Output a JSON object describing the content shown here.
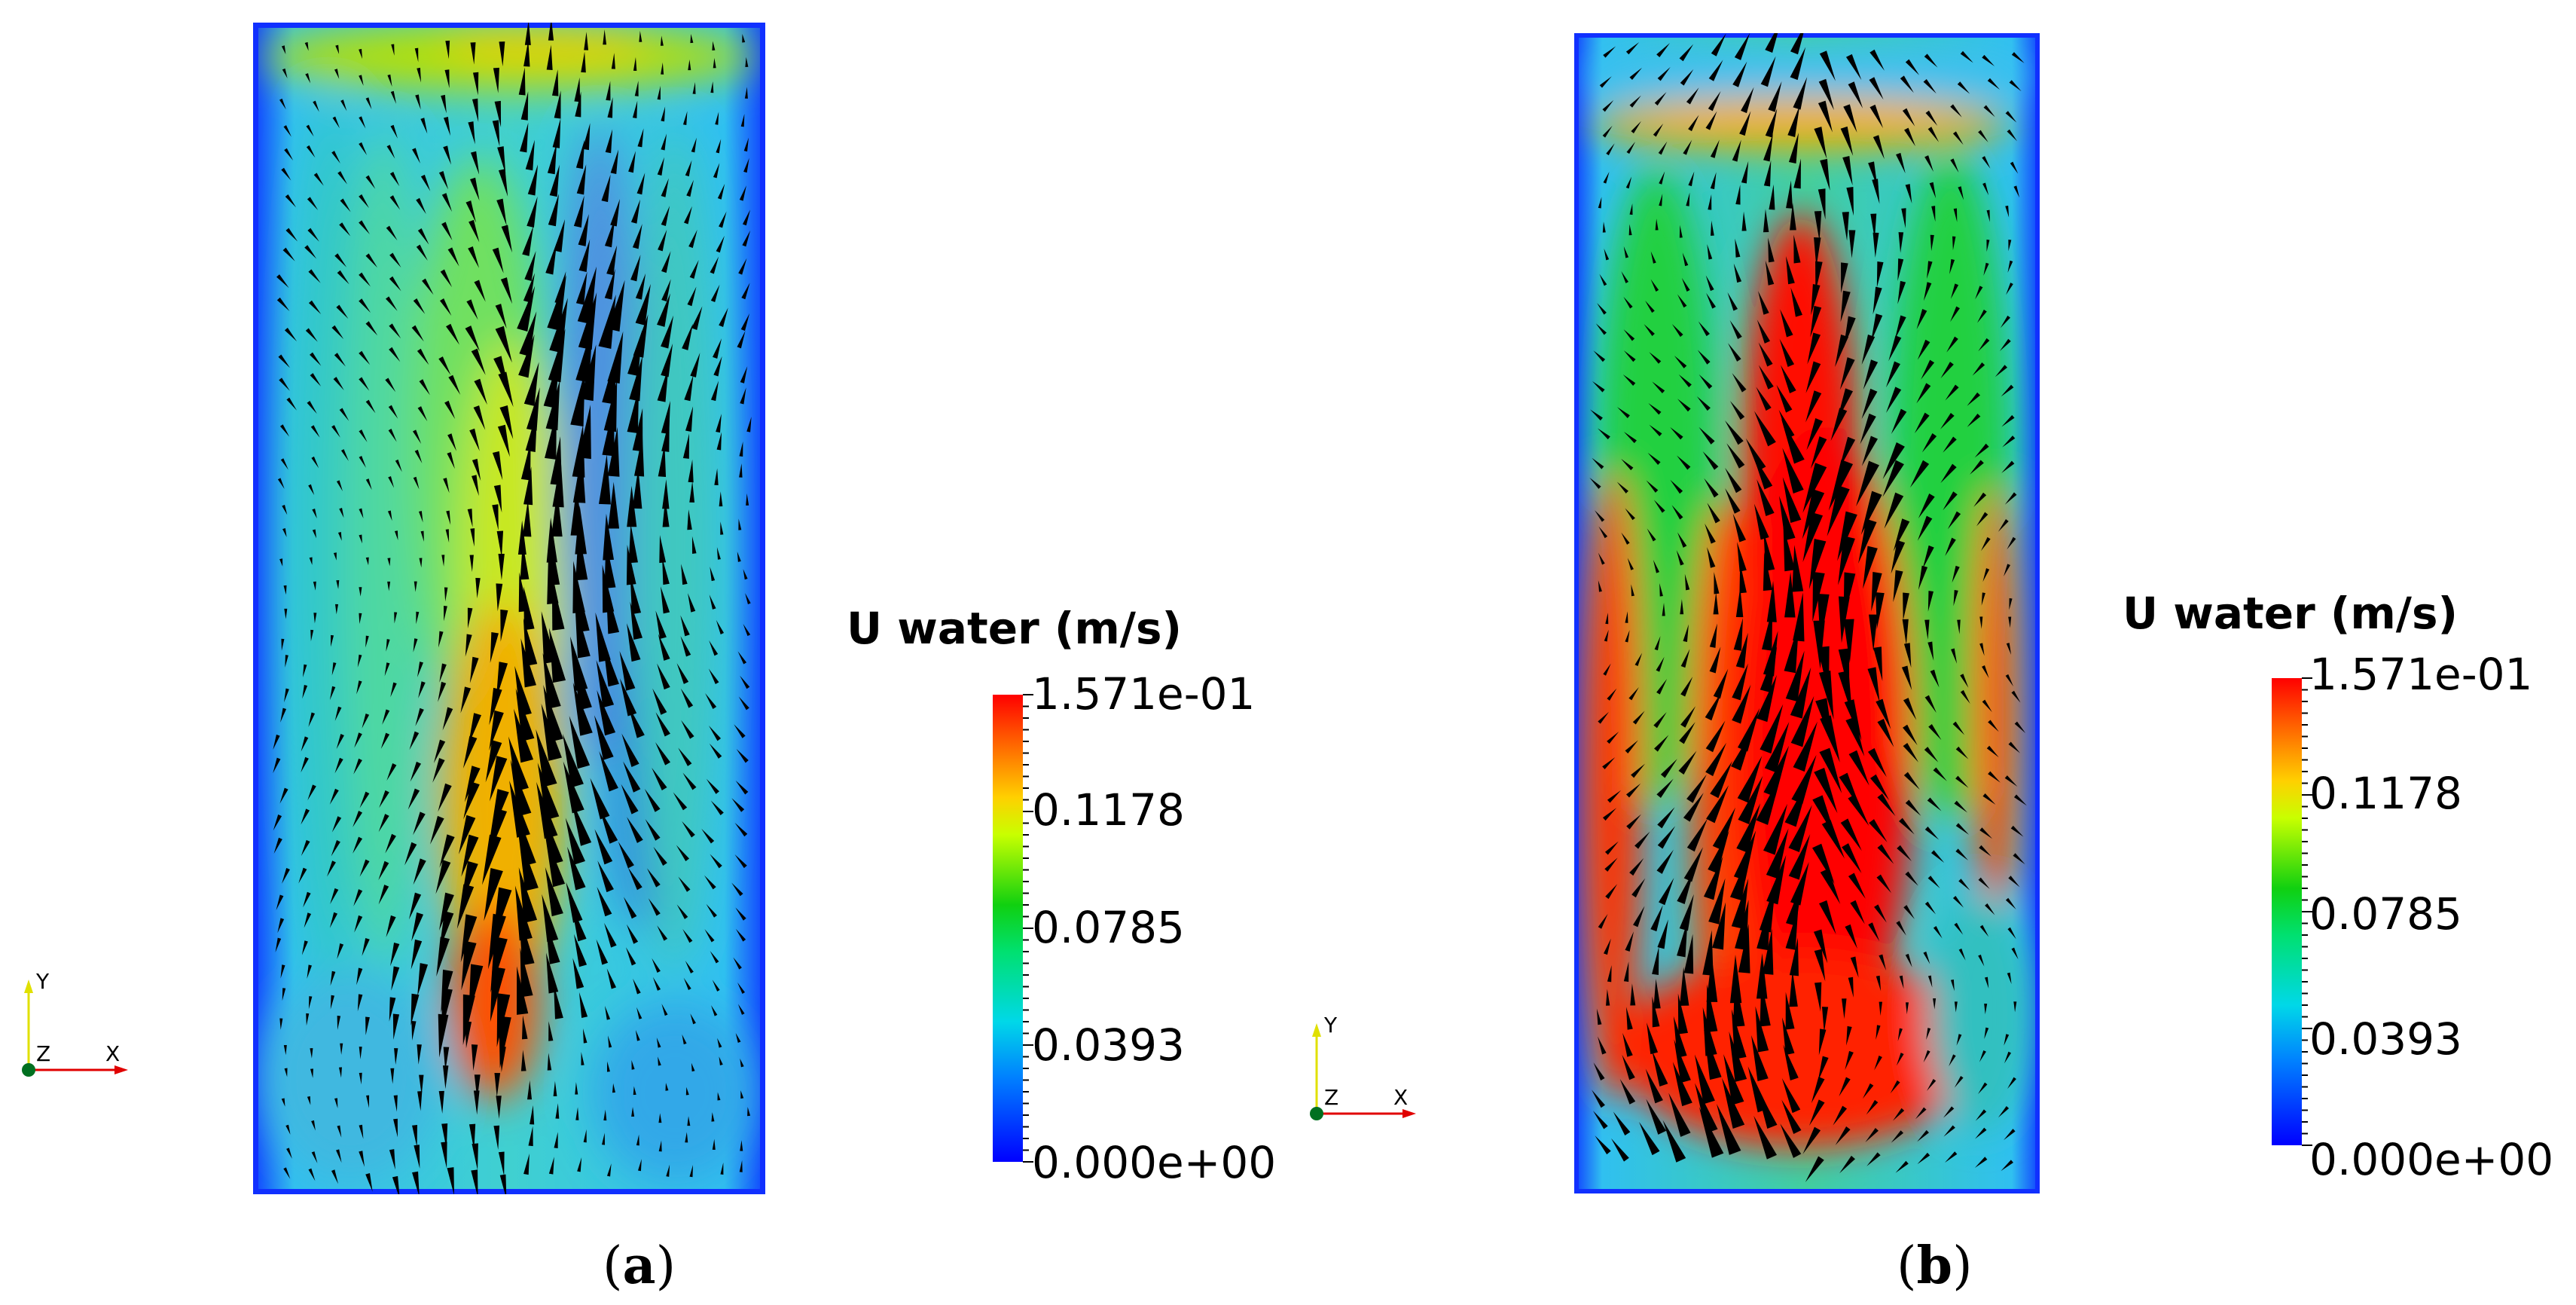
{
  "panels": [
    {
      "id": "a",
      "caption_letter": "a",
      "colorbar": {
        "title": "U water (m/s)",
        "ticks": [
          "1.571e-01",
          "0.1178",
          "0.0785",
          "0.0393",
          "0.000e+00"
        ]
      },
      "axes": {
        "y": "Y",
        "z": "Z",
        "x": "X"
      }
    },
    {
      "id": "b",
      "caption_letter": "b",
      "colorbar": {
        "title": "U water (m/s)",
        "ticks": [
          "1.571e-01",
          "0.1178",
          "0.0785",
          "0.0393",
          "0.000e+00"
        ]
      },
      "axes": {
        "y": "Y",
        "z": "Z",
        "x": "X"
      }
    }
  ],
  "colors": {
    "min": "#0000ff",
    "low": "#00d8e8",
    "mid": "#10d010",
    "high": "#ffd000",
    "max": "#ff0000",
    "arrow": "#000000"
  }
}
